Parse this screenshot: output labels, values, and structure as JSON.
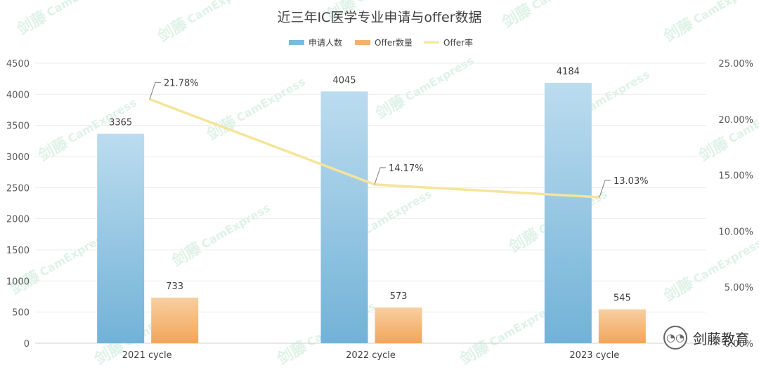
{
  "chart_data": {
    "type": "bar",
    "title": "近三年IC医学专业申请与offer数据",
    "categories": [
      "2021 cycle",
      "2022 cycle",
      "2023 cycle"
    ],
    "series": [
      {
        "name": "申请人数",
        "kind": "bar",
        "axis": "left",
        "values": [
          3365,
          4045,
          4184
        ]
      },
      {
        "name": "Offer数量",
        "kind": "bar",
        "axis": "left",
        "values": [
          733,
          573,
          545
        ]
      },
      {
        "name": "Offer率",
        "kind": "line",
        "axis": "right",
        "values": [
          21.78,
          14.17,
          13.03
        ]
      }
    ],
    "line_labels": [
      "21.78%",
      "14.17%",
      "13.03%"
    ],
    "y_left": {
      "min": 0,
      "max": 4500,
      "ticks": [
        "0",
        "500",
        "1000",
        "1500",
        "2000",
        "2500",
        "3000",
        "3500",
        "4000",
        "4500"
      ]
    },
    "y_right": {
      "min": 0,
      "max": 25,
      "ticks": [
        "0.00%",
        "5.00%",
        "10.00%",
        "15.00%",
        "20.00%",
        "25.00%"
      ]
    },
    "legend_position": "top",
    "grid": true,
    "colors": {
      "applicants": "#7db9dc",
      "offers": "#f4b26e",
      "rate": "#f5e49a"
    }
  },
  "watermark": {
    "cn": "剑藤",
    "en": "CamExpress"
  },
  "badge": {
    "text": "剑藤教育",
    "icon": "wechat-icon"
  }
}
